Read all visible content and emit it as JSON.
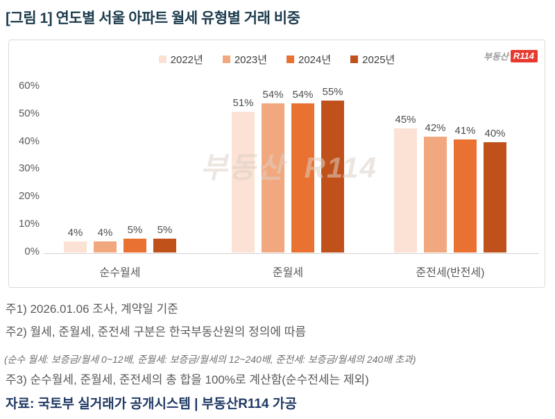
{
  "title": "[그림 1] 연도별 서울 아파트 월세 유형별 거래 비중",
  "logo": {
    "prefix": "부동산",
    "badge": "R114"
  },
  "watermark": "부동산 R114",
  "chart_data": {
    "type": "bar",
    "title": "연도별 서울 아파트 월세 유형별 거래 비중",
    "categories": [
      "순수월세",
      "준월세",
      "준전세(반전세)"
    ],
    "series": [
      {
        "name": "2022년",
        "color": "#FBE2D5",
        "values": [
          4,
          51,
          45
        ]
      },
      {
        "name": "2023년",
        "color": "#F2A87E",
        "values": [
          4,
          54,
          42
        ]
      },
      {
        "name": "2024년",
        "color": "#E97132",
        "values": [
          5,
          54,
          41
        ]
      },
      {
        "name": "2025년",
        "color": "#C0511A",
        "values": [
          5,
          55,
          40
        ]
      }
    ],
    "value_suffix": "%",
    "y_ticks": [
      "60%",
      "50%",
      "40%",
      "30%",
      "20%",
      "10%",
      "0%"
    ],
    "ylim": [
      0,
      60
    ],
    "grid": false,
    "legend_position": "top-center"
  },
  "notes": [
    "주1) 2026.01.06 조사, 계약일 기준",
    "주2) 월세, 준월세, 준전세 구분은 한국부동산원의 정의에 따름",
    "(순수 월세: 보증금/월세 0~12배, 준월세: 보증금/월세의 12~240배, 준전세: 보증금/월세의 240배 초과)",
    "주3) 순수월세, 준월세, 준전세의 총 합을 100%로 계산함(순수전세는 제외)"
  ],
  "source": "자료: 국토부 실거래가 공개시스템 | 부동산R114 가공",
  "colors": {
    "title": "#1C3B4D",
    "note_text": "#595959",
    "source_text": "#1F3864",
    "axis_text": "#595959",
    "panel_border": "#D9D9D9",
    "logo_red": "#E8392E"
  }
}
